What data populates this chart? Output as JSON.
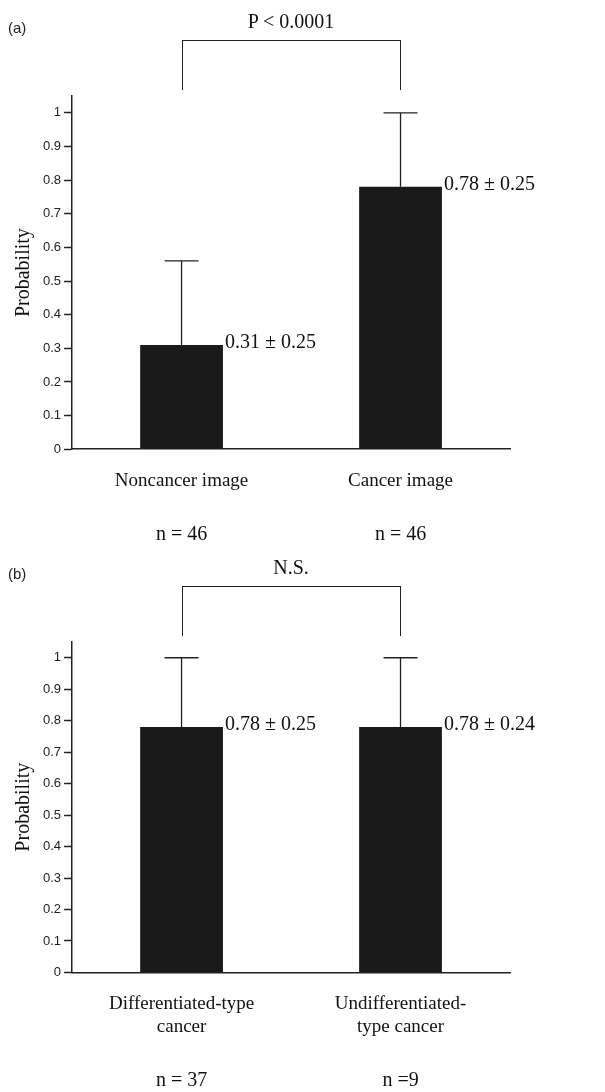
{
  "chart_data": [
    {
      "type": "bar",
      "title": "(a)",
      "ylabel": "Probability",
      "categories": [
        "Noncancer image",
        "Cancer image"
      ],
      "values": [
        0.31,
        0.78
      ],
      "color": "#1a1a1a",
      "errors": [
        [
          0.31,
          0.56
        ],
        [
          0.78,
          1.0
        ]
      ],
      "ylim": [
        0,
        1.05
      ],
      "yticks": [
        0,
        0.1,
        0.2,
        0.3,
        0.4,
        0.5,
        0.6,
        0.7,
        0.8,
        0.9,
        1
      ],
      "grid": false,
      "legend": false,
      "annotations": [
        "P < 0.0001",
        "n = 46",
        "n = 46",
        {
          "text": "0.31 ± 0.25",
          "x": "Noncancer image",
          "y": 0.31
        },
        {
          "text": "0.78 ± 0.25",
          "x": "Cancer image",
          "y": 0.78
        }
      ]
    },
    {
      "type": "bar",
      "title": "(b)",
      "ylabel": "Probability",
      "categories": [
        "Differentiated-type cancer",
        "Undifferentiated-type cancer"
      ],
      "values": [
        0.78,
        0.78
      ],
      "color": "#1a1a1a",
      "errors": [
        [
          0.78,
          1.0
        ],
        [
          0.78,
          1.0
        ]
      ],
      "ylim": [
        0,
        1.05
      ],
      "yticks": [
        0,
        0.1,
        0.2,
        0.3,
        0.4,
        0.5,
        0.6,
        0.7,
        0.8,
        0.9,
        1
      ],
      "grid": false,
      "legend": false,
      "annotations": [
        "N.S.",
        "n = 37",
        "n =9",
        {
          "text": "0.78 ± 0.25",
          "x": "Differentiated-type cancer",
          "y": 0.78
        },
        {
          "text": "0.78 ± 0.24",
          "x": "Undifferentiated-type cancer",
          "y": 0.78
        }
      ]
    }
  ]
}
